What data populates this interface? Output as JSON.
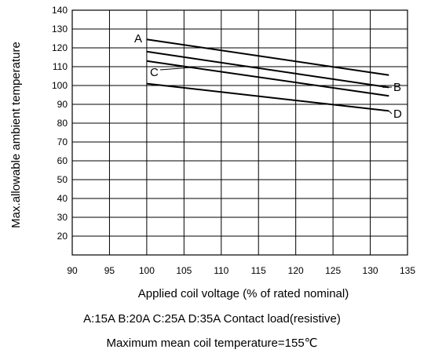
{
  "chart_data": {
    "type": "line",
    "title": "",
    "xlabel": "Applied coil voltage (% of rated nominal)",
    "ylabel": "Max.allowable ambient temperature",
    "xlim": [
      90,
      135
    ],
    "ylim": [
      10,
      140
    ],
    "x_ticks": [
      90,
      95,
      100,
      105,
      110,
      115,
      120,
      125,
      130,
      135
    ],
    "y_ticks": [
      20,
      30,
      40,
      50,
      60,
      70,
      80,
      90,
      100,
      110,
      120,
      130,
      140
    ],
    "grid": true,
    "legend": "none",
    "series": [
      {
        "name": "A",
        "x": [
          100,
          132.5
        ],
        "y": [
          124.5,
          105.5
        ]
      },
      {
        "name": "B",
        "x": [
          100,
          132.5
        ],
        "y": [
          118,
          99
        ]
      },
      {
        "name": "C",
        "x": [
          100,
          132.5
        ],
        "y": [
          113,
          94.5
        ]
      },
      {
        "name": "D",
        "x": [
          100,
          132.5
        ],
        "y": [
          101,
          86.5
        ]
      }
    ]
  },
  "notes": {
    "load": "A:15A B:20A C:25A D:35A Contact load(resistive)",
    "coil_temp": "Maximum mean coil temperature=155℃"
  }
}
